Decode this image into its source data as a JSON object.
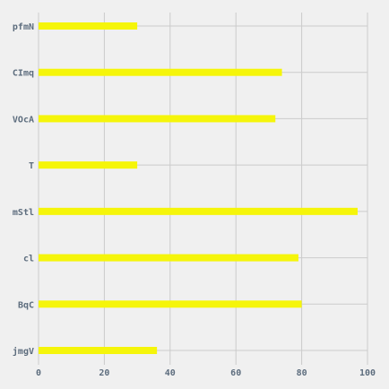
{
  "chart_data": {
    "type": "bar",
    "orientation": "horizontal",
    "categories": [
      "pfmN",
      "CImq",
      "VOcA",
      "T",
      "mStl",
      "cl",
      "BqC",
      "jmgV"
    ],
    "values": [
      30,
      74,
      72,
      30,
      97,
      79,
      80,
      36
    ],
    "xlim": [
      0,
      100
    ],
    "xticks": [
      0,
      20,
      40,
      60,
      80,
      100
    ],
    "title": "",
    "xlabel": "",
    "ylabel": "",
    "grid": true,
    "legend": "none",
    "colors": {
      "bar": "#f5f50a",
      "grid": "#cbcbcb",
      "background": "#f0f0f0",
      "text": "#5d6d7e"
    }
  }
}
